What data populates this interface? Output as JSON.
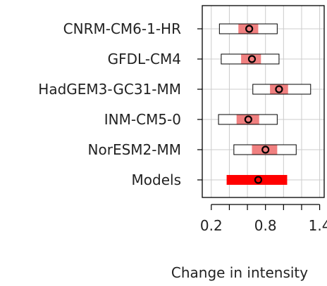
{
  "chart_data": {
    "type": "interval",
    "xlabel": "Change in intensity",
    "xlim": [
      0.1,
      1.45
    ],
    "xticks": [
      0.2,
      0.8,
      1.4
    ],
    "xtick_labels": [
      "0.2",
      "0.8",
      "1.4"
    ],
    "grid": true,
    "colors": {
      "inner_interval": "#f08080",
      "models_interval": "#ff0000",
      "outer_interval_fill": "#ffffff",
      "outline": "#000000",
      "grid": "#cccccc"
    },
    "rows": [
      {
        "label": "CNRM-CM6-1-HR",
        "outer": [
          0.29,
          0.93
        ],
        "inner": [
          0.5,
          0.72
        ],
        "median": 0.62,
        "summary": false
      },
      {
        "label": "GFDL-CM4",
        "outer": [
          0.31,
          0.95
        ],
        "inner": [
          0.53,
          0.75
        ],
        "median": 0.65,
        "summary": false
      },
      {
        "label": "HadGEM3-GC31-MM",
        "outer": [
          0.66,
          1.3
        ],
        "inner": [
          0.85,
          1.05
        ],
        "median": 0.95,
        "summary": false
      },
      {
        "label": "INM-CM5-0",
        "outer": [
          0.28,
          0.93
        ],
        "inner": [
          0.48,
          0.73
        ],
        "median": 0.61,
        "summary": false
      },
      {
        "label": "NorESM2-MM",
        "outer": [
          0.45,
          1.14
        ],
        "inner": [
          0.65,
          0.93
        ],
        "median": 0.8,
        "summary": false
      },
      {
        "label": "Models",
        "outer": [
          0.37,
          1.04
        ],
        "inner": [
          0.37,
          1.04
        ],
        "median": 0.72,
        "summary": true
      }
    ]
  }
}
